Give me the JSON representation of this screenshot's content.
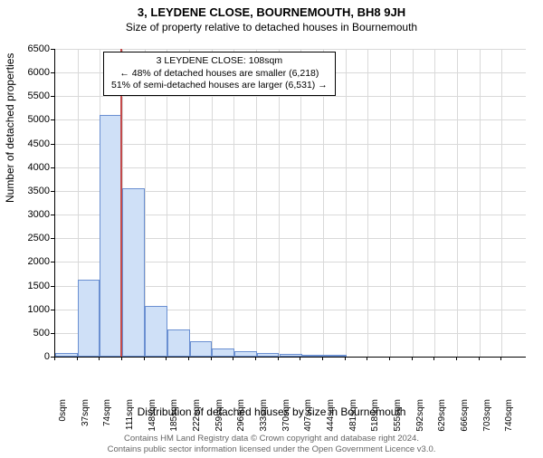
{
  "title": "3, LEYDENE CLOSE, BOURNEMOUTH, BH8 9JH",
  "subtitle": "Size of property relative to detached houses in Bournemouth",
  "y_axis_label": "Number of detached properties",
  "x_axis_label": "Distribution of detached houses by size in Bournemouth",
  "info_box": {
    "line1": "3 LEYDENE CLOSE: 108sqm",
    "line2": "← 48% of detached houses are smaller (6,218)",
    "line3": "51% of semi-detached houses are larger (6,531) →"
  },
  "footer": {
    "line1": "Contains HM Land Registry data © Crown copyright and database right 2024.",
    "line2": "Contains public sector information licensed under the Open Government Licence v3.0."
  },
  "chart": {
    "type": "histogram",
    "bar_fill": "#cfe0f7",
    "bar_stroke": "#6a8fd1",
    "marker_color": "#c44b4b",
    "marker_x": 108,
    "background_color": "#ffffff",
    "grid_color": "#d9d9d9",
    "ylim": [
      0,
      6500
    ],
    "ytick_step": 500,
    "xlim": [
      0,
      780
    ],
    "xtick_step": 37,
    "xtick_unit": "sqm",
    "bars": [
      {
        "x": 0,
        "count": 80
      },
      {
        "x": 37,
        "count": 1630
      },
      {
        "x": 74,
        "count": 5100
      },
      {
        "x": 111,
        "count": 3550
      },
      {
        "x": 149,
        "count": 1070
      },
      {
        "x": 186,
        "count": 580
      },
      {
        "x": 223,
        "count": 320
      },
      {
        "x": 260,
        "count": 180
      },
      {
        "x": 297,
        "count": 110
      },
      {
        "x": 334,
        "count": 75
      },
      {
        "x": 372,
        "count": 55
      },
      {
        "x": 409,
        "count": 45
      },
      {
        "x": 446,
        "count": 25
      }
    ]
  }
}
